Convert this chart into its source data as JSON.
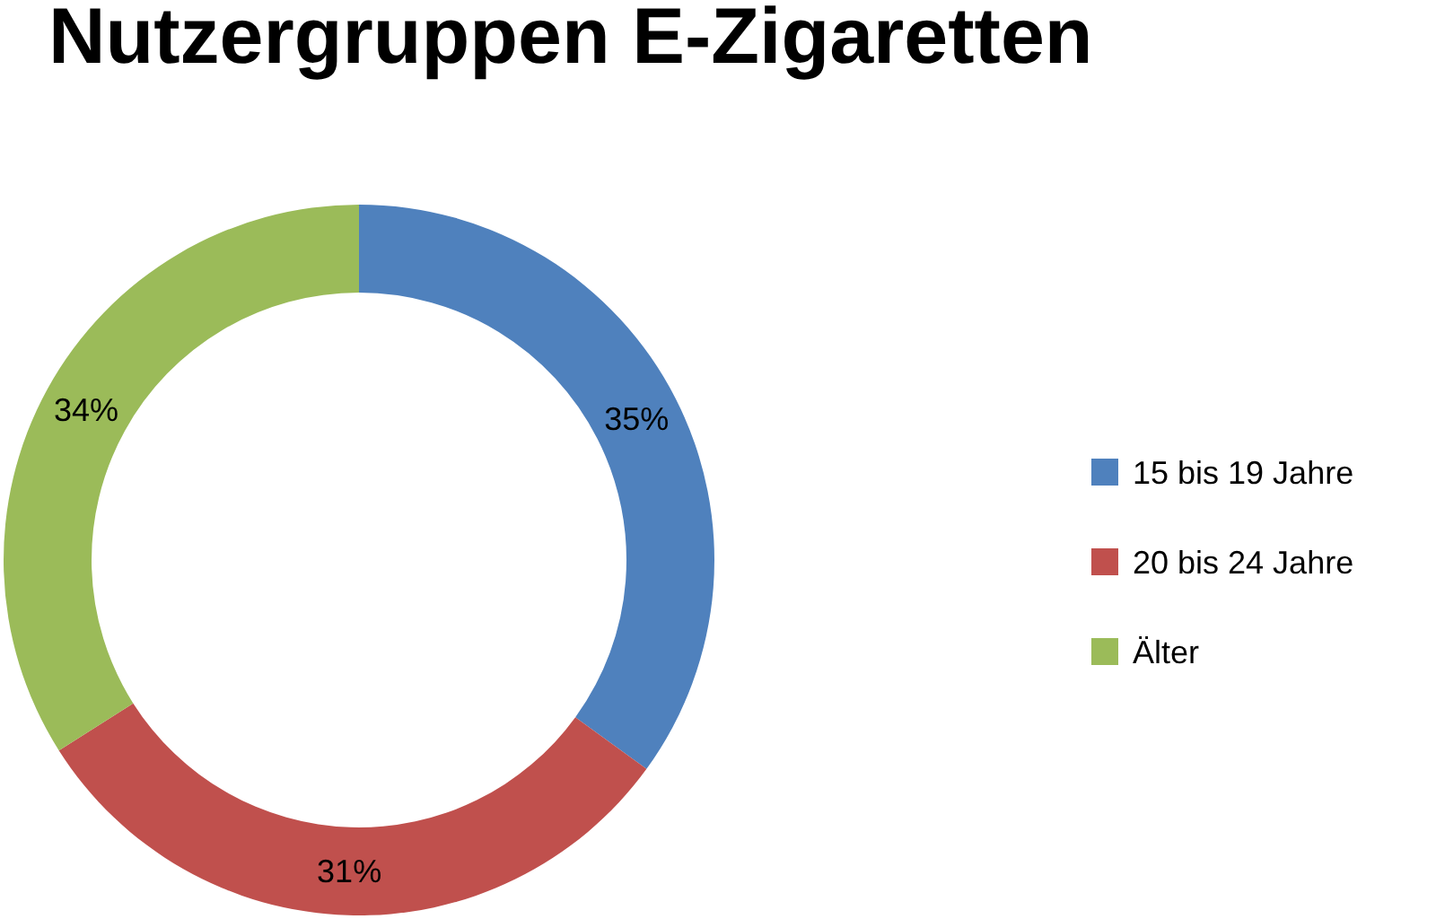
{
  "chart_data": {
    "type": "donut",
    "title": "Nutzergruppen E-Zigaretten",
    "categories": [
      "15 bis 19 Jahre",
      "20 bis 24 Jahre",
      "Älter"
    ],
    "values": [
      35,
      31,
      34
    ],
    "colors": [
      "#4f81bd",
      "#c0504d",
      "#9bbb59"
    ],
    "value_labels": [
      "35%",
      "31%",
      "34%"
    ],
    "legend": "right"
  }
}
